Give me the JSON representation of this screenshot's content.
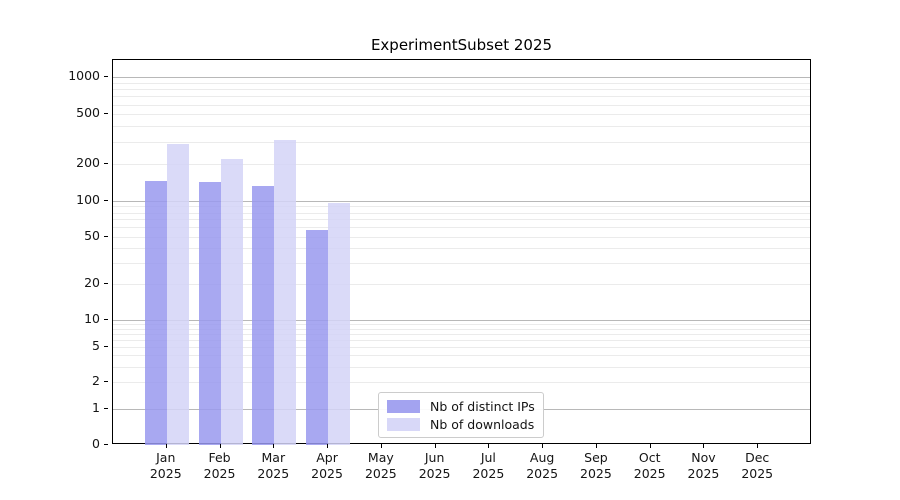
{
  "title": "ExperimentSubset 2025",
  "chart_data": {
    "type": "bar",
    "title": "ExperimentSubset 2025",
    "categories": [
      "Jan 2025",
      "Feb 2025",
      "Mar 2025",
      "Apr 2025",
      "May 2025",
      "Jun 2025",
      "Jul 2025",
      "Aug 2025",
      "Sep 2025",
      "Oct 2025",
      "Nov 2025",
      "Dec 2025"
    ],
    "series": [
      {
        "name": "Nb of distinct IPs",
        "color": "#9999ee",
        "values": [
          146,
          142,
          132,
          57,
          0,
          0,
          0,
          0,
          0,
          0,
          0,
          0
        ]
      },
      {
        "name": "Nb of downloads",
        "color": "#d4d4f7",
        "values": [
          290,
          218,
          310,
          97,
          0,
          0,
          0,
          0,
          0,
          0,
          0,
          0
        ]
      }
    ],
    "yscale": "symlog",
    "ylim": [
      0,
      1450
    ],
    "yticks": [
      1000,
      500,
      200,
      100,
      50,
      20,
      10,
      5,
      2,
      1,
      0
    ],
    "grid": "horizontal major and log-minor gridlines",
    "legend_position": "lower center",
    "colors": {
      "major_grid": "#b8b8b8",
      "minor_grid": "#ebebeb",
      "spine": "#000000",
      "text": "#151515"
    }
  }
}
